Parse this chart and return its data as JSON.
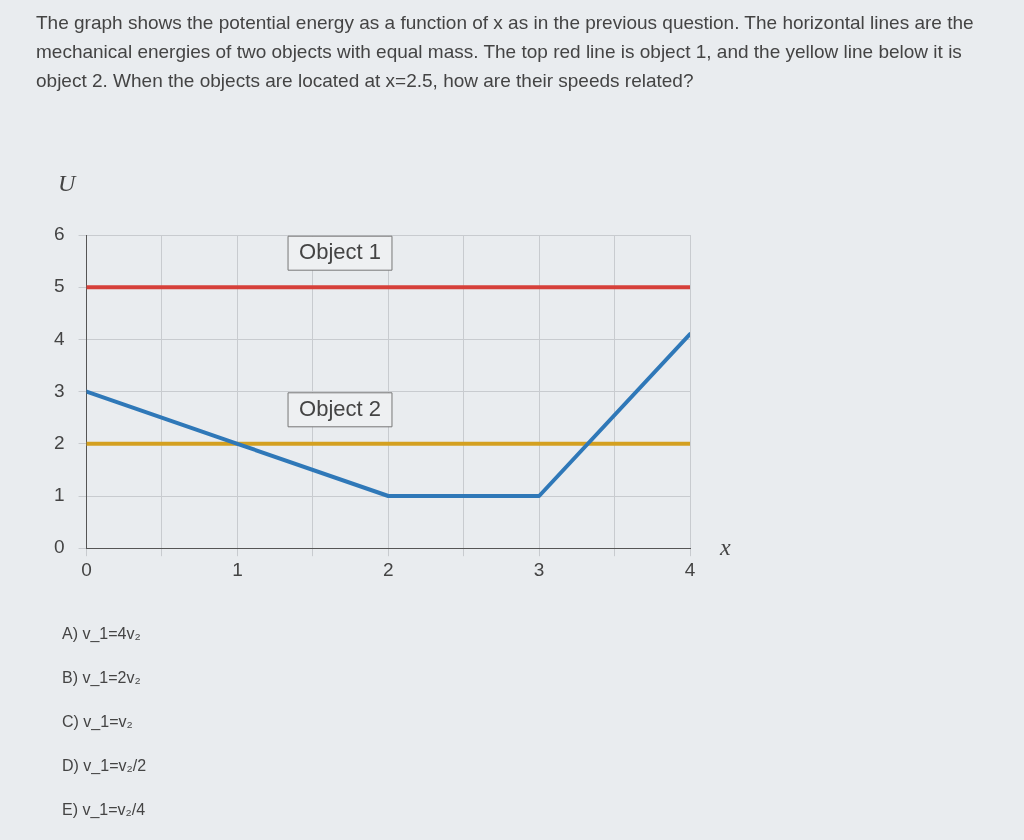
{
  "chart_data": {
    "type": "line",
    "title": "The graph shows the potential energy as a function of x as in the previous question. The horizontal lines are the mechanical energies of two objects with equal mass. The top red line is object 1, and the yellow line below it is object 2.  When the objects are located at x=2.5, how are their speeds related?",
    "ylabel": "U",
    "xlabel": "x",
    "series": [
      {
        "color": "#2f78b8",
        "x": [
          0,
          1,
          2,
          3,
          4
        ],
        "values": [
          3,
          2,
          1,
          1,
          4.1
        ]
      },
      {
        "name": "Object 1",
        "color": "#d6403a",
        "x": [
          0,
          4
        ],
        "values": [
          5,
          5
        ]
      },
      {
        "name": "Object 2",
        "color": "#d4a020",
        "x": [
          0,
          4
        ],
        "values": [
          2,
          2
        ]
      }
    ],
    "xlim": [
      0,
      4
    ],
    "ylim": [
      0,
      6
    ],
    "xticks": [
      0,
      {
        "value": 0.5,
        "label": null
      },
      1,
      {
        "value": 1.5,
        "label": null
      },
      2,
      {
        "value": 2.5,
        "label": null
      },
      3,
      {
        "value": 3.5,
        "label": null
      },
      4
    ],
    "yticks": [
      0,
      1,
      2,
      3,
      4,
      5,
      6
    ],
    "grid": true,
    "marker": "none",
    "line_style": "solid",
    "annotations": [
      "A) v_1=4v₂",
      "B) v_1=2v₂",
      "C) v_1=v₂",
      "D) v_1=v₂/2",
      "E) v_1=v₂/4"
    ]
  }
}
